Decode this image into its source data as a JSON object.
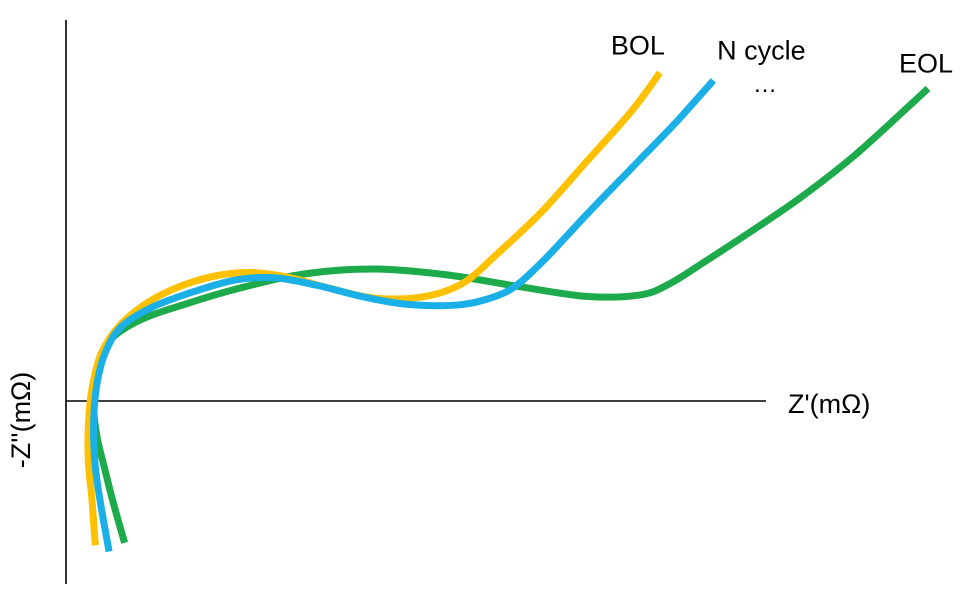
{
  "chart_data": {
    "type": "line",
    "xlabel": "Z'(mΩ)",
    "ylabel": "-Z''(mΩ)",
    "xlim": [
      0,
      100
    ],
    "ylim": [
      -45,
      100
    ],
    "grid": false,
    "legend": "direct labels at line ends",
    "annotations": [
      "…"
    ],
    "series": [
      {
        "name": "BOL",
        "color": "#FFC000",
        "x": [
          3.4,
          3.0,
          2.6,
          2.6,
          3.0,
          4.1,
          6.3,
          9.7,
          13.8,
          17.9,
          21.6,
          25.7,
          30.6,
          35.8,
          41.5,
          46.0,
          50.1,
          55.2,
          60.4,
          65.6,
          68.9
        ],
        "y": [
          -41.2,
          -28.0,
          -17.5,
          -7.1,
          3.3,
          13.7,
          21.8,
          28.5,
          33.3,
          36.0,
          36.7,
          35.4,
          32.2,
          29.4,
          29.8,
          33.6,
          42.2,
          54.1,
          68.4,
          82.8,
          93.8
        ]
      },
      {
        "name": "N cycle",
        "color": "#1AAFE6",
        "x": [
          5.0,
          4.0,
          3.4,
          3.2,
          3.5,
          4.5,
          6.4,
          10.0,
          14.9,
          19.7,
          24.2,
          29.2,
          34.4,
          39.7,
          45.7,
          49.8,
          52.5,
          55.9,
          60.6,
          66.2,
          70.9,
          75.1
        ],
        "y": [
          -43.0,
          -29.2,
          -18.8,
          -7.9,
          3.5,
          13.5,
          21.2,
          26.8,
          31.3,
          34.6,
          35.2,
          33.0,
          29.8,
          27.6,
          27.5,
          29.9,
          33.5,
          41.4,
          53.8,
          68.0,
          80.0,
          91.6
        ]
      },
      {
        "name": "EOL",
        "color": "#1DAA4A",
        "x": [
          6.8,
          5.5,
          4.5,
          3.6,
          3.2,
          3.4,
          4.8,
          8.4,
          14.1,
          20.7,
          27.9,
          35.8,
          44.0,
          52.3,
          60.4,
          66.6,
          70.1,
          74.3,
          79.2,
          85.2,
          91.4,
          97.5,
          100.0
        ],
        "y": [
          -40.5,
          -29.2,
          -19.5,
          -10.2,
          -1.8,
          7.1,
          16.5,
          22.9,
          27.9,
          32.6,
          36.4,
          37.7,
          36.1,
          32.8,
          29.9,
          30.3,
          33.6,
          40.1,
          48.0,
          58.1,
          70.0,
          83.6,
          89.3
        ]
      }
    ]
  }
}
